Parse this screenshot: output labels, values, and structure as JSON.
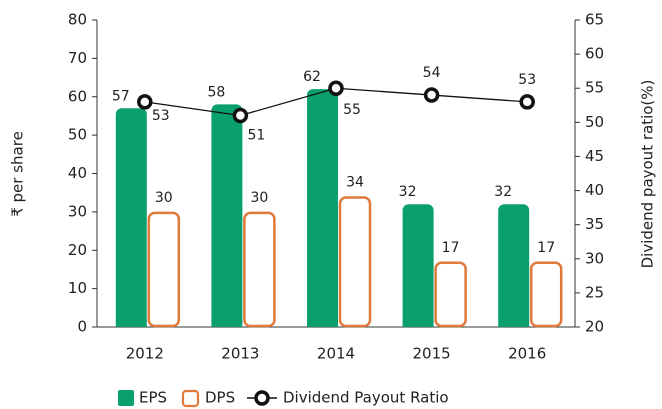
{
  "chart_data": {
    "type": "bar",
    "categories": [
      "2012",
      "2013",
      "2014",
      "2015",
      "2016"
    ],
    "series": [
      {
        "name": "EPS",
        "color": "#0aa06e",
        "values": [
          57,
          58,
          62,
          32,
          32
        ]
      },
      {
        "name": "DPS",
        "color": "#e07a3a",
        "values": [
          30,
          30,
          34,
          17,
          17
        ]
      },
      {
        "name": "Dividend Payout Ratio",
        "color": "#111111",
        "axis": "y2",
        "values": [
          53,
          51,
          55,
          54,
          53
        ]
      }
    ],
    "ylabel": "₹ per share",
    "y2label": "Dividend payout ratio(%)",
    "ylim": [
      0,
      80
    ],
    "yticks": [
      0,
      10,
      20,
      30,
      40,
      50,
      60,
      70,
      80
    ],
    "y2lim": [
      20,
      65
    ],
    "y2ticks": [
      20,
      25,
      30,
      35,
      40,
      45,
      50,
      55,
      60,
      65
    ],
    "legend": "bottom"
  }
}
